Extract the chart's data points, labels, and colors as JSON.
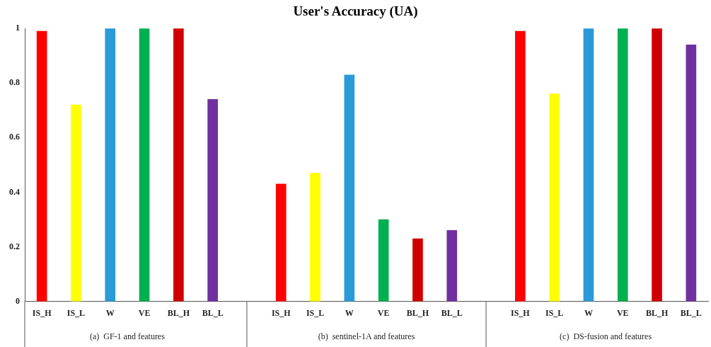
{
  "chart_data": {
    "type": "bar",
    "title": "User's Accuracy (UA)",
    "categories": [
      "IS_H",
      "IS_L",
      "W",
      "VE",
      "BL_H",
      "BL_L",
      null,
      "IS_H",
      "IS_L",
      "W",
      "VE",
      "BL_H",
      "BL_L",
      null,
      "IS_H",
      "IS_L",
      "W",
      "VE",
      "BL_H",
      "BL_L"
    ],
    "values": [
      0.99,
      0.72,
      1,
      1,
      1,
      0.74,
      null,
      0.43,
      0.47,
      0.83,
      0.3,
      0.23,
      0.26,
      null,
      0.99,
      0.76,
      1,
      1,
      1,
      0.94
    ],
    "colors": [
      "#ff0000",
      "#ffff00",
      "#2a9ad8",
      "#00b050",
      "#d00000",
      "#7030a0",
      null,
      "#ff0000",
      "#ffff00",
      "#2a9ad8",
      "#00b050",
      "#d00000",
      "#7030a0",
      null,
      "#ff0000",
      "#ffff00",
      "#2a9ad8",
      "#00b050",
      "#d00000",
      "#7030a0"
    ],
    "ylim": [
      0,
      1
    ],
    "yticks": [
      0,
      0.2,
      0.4,
      0.6,
      0.8,
      1
    ],
    "grid": false,
    "legend": false,
    "annotations": [
      "(a)  GF-1 and features",
      "(b)  sentinel-1A and features",
      "(c)  DS-fusion and features"
    ]
  }
}
